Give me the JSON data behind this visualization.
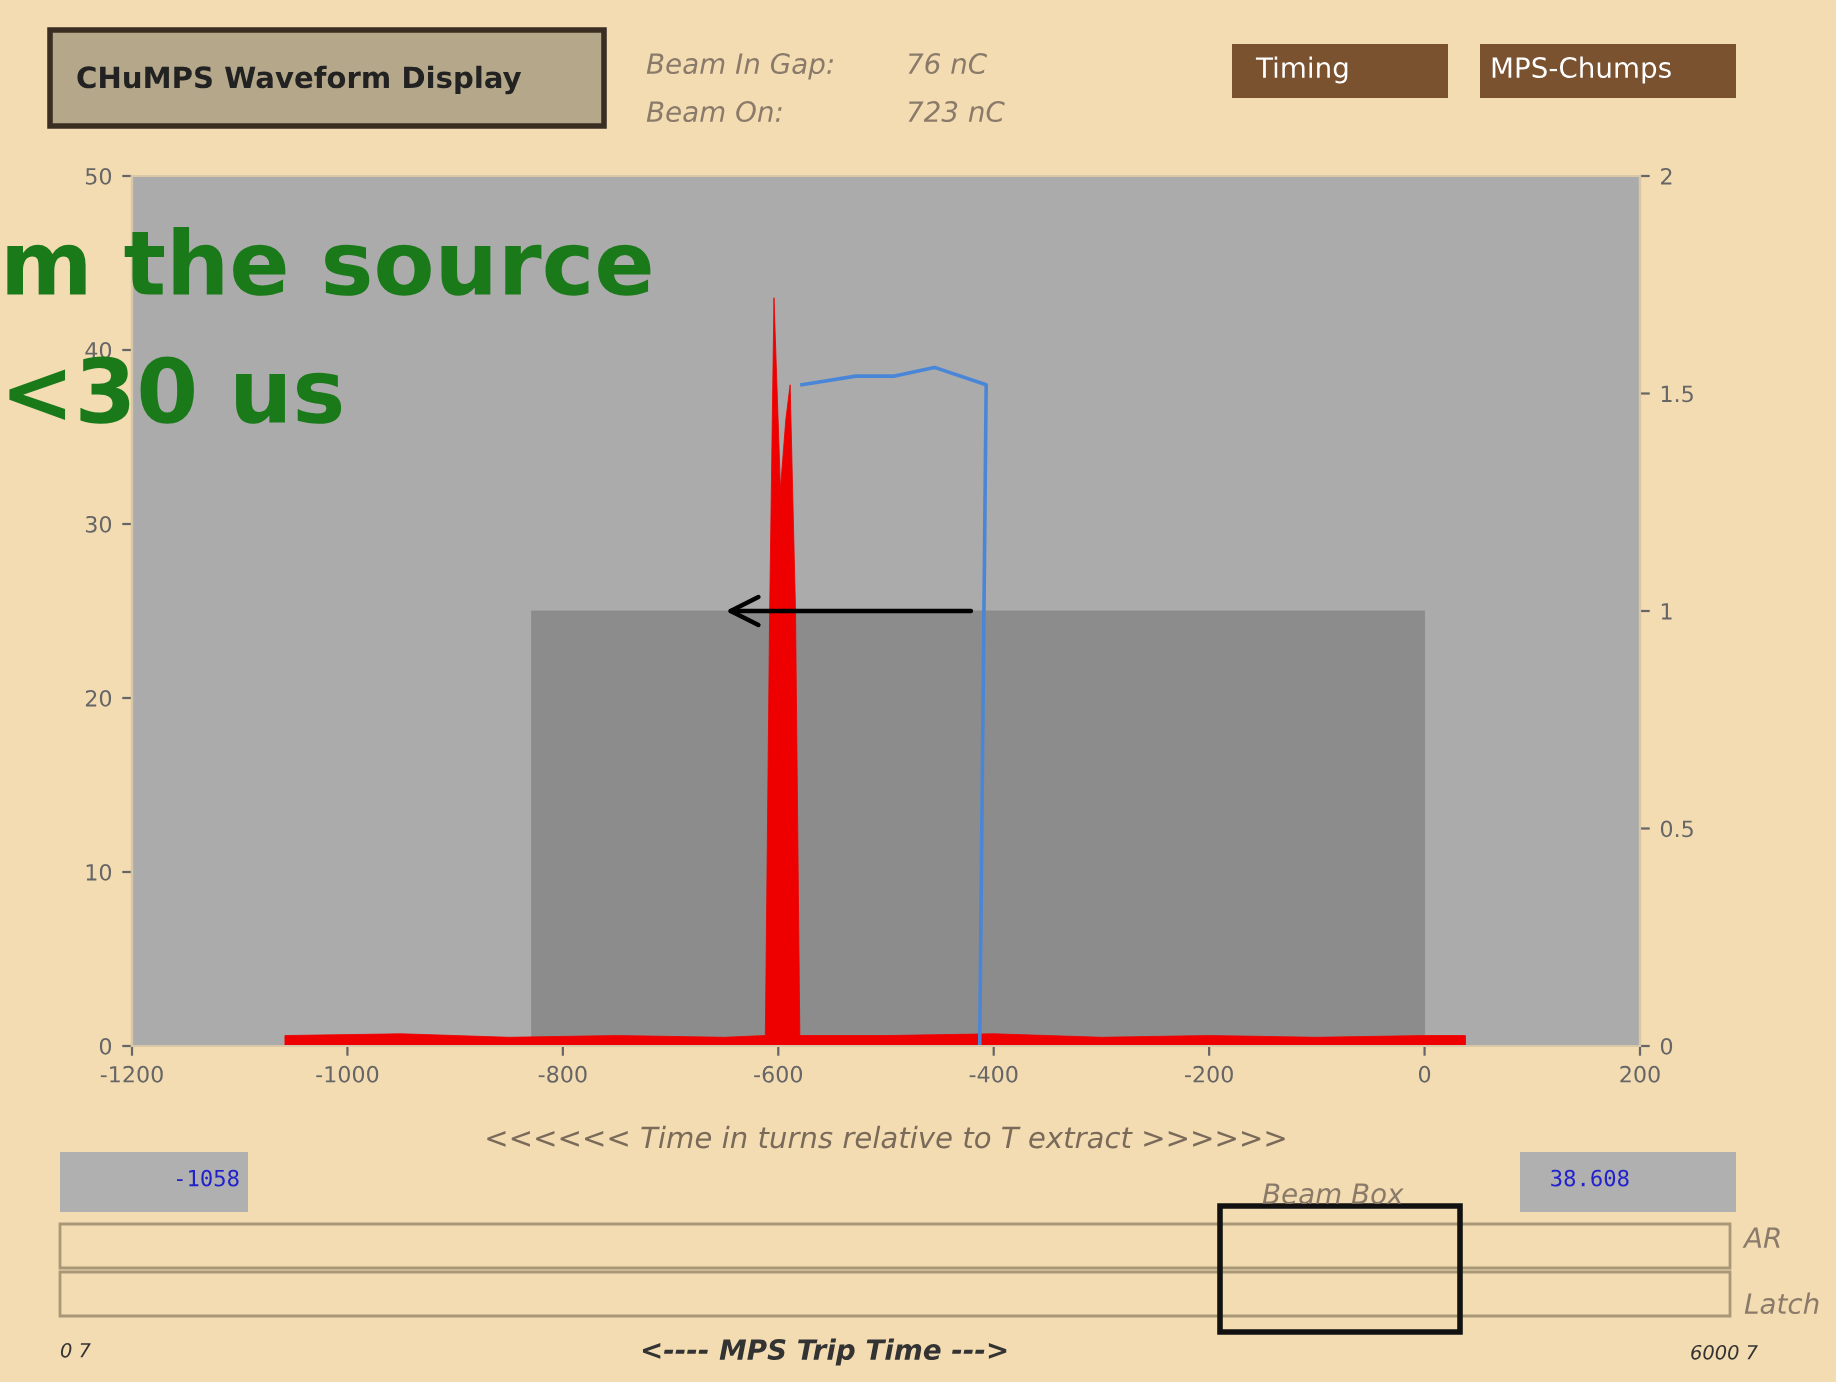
{
  "chart_data": {
    "type": "line",
    "title": "CHuMPS Waveform Display",
    "xlabel": "<<<<<< Time in turns relative to T extract >>>>>>",
    "xlim": [
      -1200,
      200
    ],
    "xticks": [
      -1200,
      -1000,
      -800,
      -600,
      -400,
      -200,
      0,
      200
    ],
    "ylim": [
      0,
      50
    ],
    "yticks": [
      0,
      10,
      20,
      30,
      40,
      50
    ],
    "y2lim": [
      0,
      2
    ],
    "y2ticks": [
      0,
      0.5,
      1,
      1.5,
      2
    ],
    "grid": false,
    "legend": false,
    "series": [
      {
        "type": "area",
        "color": "#8c8c8c",
        "x": [
          -829,
          0
        ],
        "values": [
          25,
          25
        ]
      },
      {
        "type": "area",
        "color": "#ee0000",
        "x": [
          -1058,
          -950,
          -850,
          -750,
          -650,
          -612,
          -608,
          -604,
          -598,
          -593,
          -589,
          -584,
          -580,
          -576,
          -500,
          -400,
          -300,
          -200,
          -100,
          0,
          38
        ],
        "values": [
          0.6,
          0.7,
          0.5,
          0.6,
          0.5,
          0.6,
          25,
          43,
          32,
          36,
          38,
          25,
          0.6,
          0.6,
          0.6,
          0.7,
          0.5,
          0.6,
          0.5,
          0.6,
          0.6
        ]
      },
      {
        "axis": "y2",
        "color": "#4a86d8",
        "x": [
          -578,
          -528,
          -492,
          -455,
          -407,
          -413
        ],
        "values": [
          1.52,
          1.54,
          1.54,
          1.56,
          1.52,
          0
        ]
      }
    ],
    "annotations": [
      "Beam In Gap:",
      "76 nC",
      "Beam On:",
      "723 nC",
      "Timing",
      "MPS-Chumps",
      "-1058",
      "38.608",
      "Beam Box",
      "AR",
      "Latch",
      "0 7",
      "<---- MPS Trip Time --->",
      "6000 7",
      "m the source",
      "<30 us"
    ]
  }
}
